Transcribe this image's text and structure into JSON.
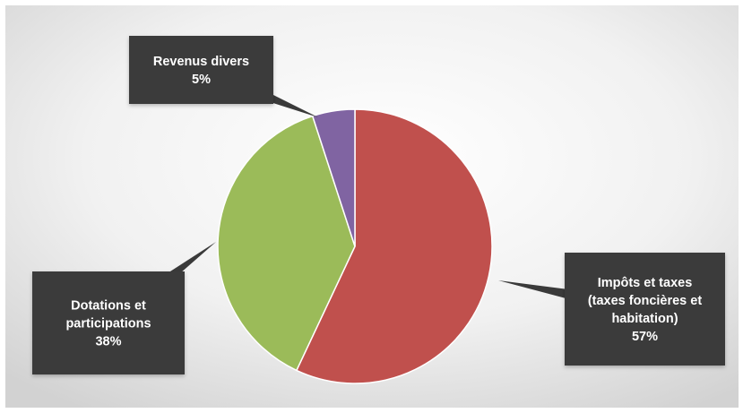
{
  "chart_data": {
    "type": "pie",
    "slices": [
      {
        "name": "Impôts et taxes (taxes foncières et habitation)",
        "label_lines": [
          "Impôts et taxes",
          "(taxes foncières et",
          "habitation)"
        ],
        "percent_label": "57%",
        "value": 57,
        "color": "#c0504d"
      },
      {
        "name": "Dotations et participations",
        "label_lines": [
          "Dotations et",
          "participations"
        ],
        "percent_label": "38%",
        "value": 38,
        "color": "#9bbb59"
      },
      {
        "name": "Revenus divers",
        "label_lines": [
          "Revenus divers"
        ],
        "percent_label": "5%",
        "value": 5,
        "color": "#8064a2"
      }
    ],
    "start_angle_deg": 0,
    "direction": "clockwise",
    "label_style": "callout",
    "callout_color": "#3a3a3a",
    "legend": "none",
    "background": "light-gray-gradient"
  }
}
